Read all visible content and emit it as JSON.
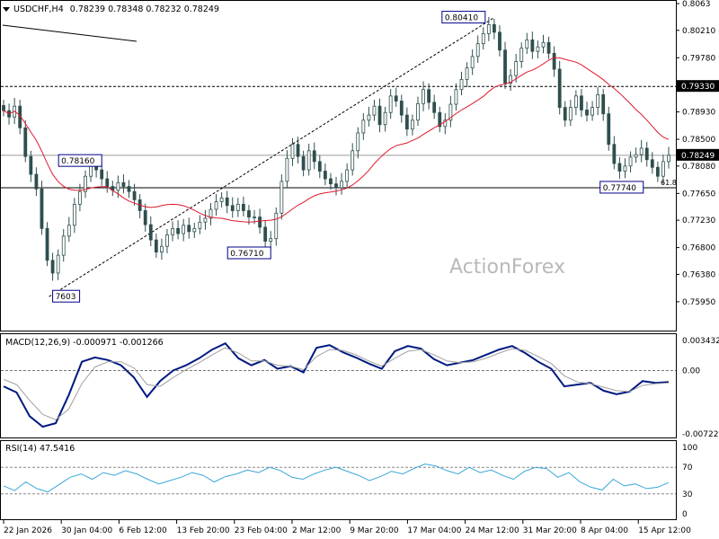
{
  "colors": {
    "background": "#ffffff",
    "candles": "#2f4f4f",
    "ma_line": "#e0182c",
    "macd_line": "#001a80",
    "signal_line": "#a0a0a0",
    "rsi_line": "#39a7d8",
    "label_border": "#00008b",
    "price_tag_bg": "#000000",
    "price_tag_fg": "#ffffff",
    "grid_frame": "#000000",
    "watermark": "#b9b9b9"
  },
  "header": {
    "symbol": "USDCHF,H4",
    "ohlc": "0.78239 0.78348 0.78232 0.78249",
    "dropdown_icon": "triangle-down-icon"
  },
  "watermark": "ActionForex",
  "chart_data": [
    {
      "type": "candlestick",
      "title": "USDCHF,H4",
      "ylim": [
        0.7561,
        0.8063
      ],
      "y_ticks": [
        0.8063,
        0.8021,
        0.7978,
        0.7935,
        0.7893,
        0.785,
        0.7808,
        0.7765,
        0.7723,
        0.768,
        0.7638,
        0.7595
      ],
      "y_tick_labels": [
        "0.8063",
        "0.80210",
        "0.79780",
        "0.79350",
        "0.78930",
        "0.78500",
        "0.78080",
        "0.77650",
        "0.77230",
        "0.76800",
        "0.76380",
        "0.75950"
      ],
      "x_tick_labels": [
        "22 Jan 2026",
        "30 Jan 04:00",
        "6 Feb 12:00",
        "13 Feb 20:00",
        "23 Feb 04:00",
        "2 Mar 12:00",
        "9 Mar 20:00",
        "17 Mar 04:00",
        "24 Mar 12:00",
        "31 Mar 20:00",
        "8 Apr 04:00",
        "15 Apr 12:00"
      ],
      "closes": [
        0.7895,
        0.7885,
        0.7902,
        0.7868,
        0.7823,
        0.7795,
        0.7772,
        0.771,
        0.766,
        0.764,
        0.7668,
        0.7698,
        0.7715,
        0.7748,
        0.7768,
        0.7792,
        0.781,
        0.7802,
        0.7788,
        0.7776,
        0.777,
        0.7782,
        0.7776,
        0.7768,
        0.7755,
        0.7738,
        0.7716,
        0.7692,
        0.7673,
        0.7682,
        0.77,
        0.771,
        0.7702,
        0.7715,
        0.7705,
        0.771,
        0.772,
        0.7726,
        0.774,
        0.7752,
        0.7758,
        0.7746,
        0.7738,
        0.7748,
        0.7738,
        0.7728,
        0.7728,
        0.7712,
        0.769,
        0.7694,
        0.7734,
        0.7784,
        0.782,
        0.7842,
        0.7823,
        0.7802,
        0.7832,
        0.7815,
        0.78,
        0.7788,
        0.778,
        0.7774,
        0.7784,
        0.7802,
        0.7832,
        0.786,
        0.788,
        0.7888,
        0.7902,
        0.7873,
        0.7892,
        0.7918,
        0.791,
        0.7888,
        0.7866,
        0.788,
        0.7906,
        0.7928,
        0.7908,
        0.7892,
        0.787,
        0.788,
        0.7905,
        0.7928,
        0.7944,
        0.7962,
        0.798,
        0.8,
        0.8016,
        0.803,
        0.8018,
        0.799,
        0.7938,
        0.795,
        0.7972,
        0.7993,
        0.8006,
        0.7988,
        0.7995,
        0.8002,
        0.7985,
        0.796,
        0.79,
        0.788,
        0.79,
        0.7918,
        0.7896,
        0.7888,
        0.79,
        0.792,
        0.789,
        0.7842,
        0.7812,
        0.78,
        0.7808,
        0.7822,
        0.7826,
        0.7836,
        0.7818,
        0.7806,
        0.7792,
        0.7815,
        0.7825
      ],
      "moving_average": {
        "period": 20
      },
      "price_tags": [
        {
          "label": "0.79330",
          "value": 0.7933
        },
        {
          "label": "0.78249",
          "value": 0.78249
        }
      ],
      "horizontal_lines": [
        {
          "value": 0.7933,
          "style": "dashed"
        },
        {
          "value": 0.78249,
          "style": "solid-gray"
        },
        {
          "value": 0.7774,
          "style": "solid"
        }
      ],
      "annotations": [
        {
          "label": "0.80410",
          "value": 0.8041
        },
        {
          "label": "0.78160",
          "value": 0.7816
        },
        {
          "label": "0.76710",
          "value": 0.7671
        },
        {
          "label": "0.77740",
          "value": 0.7774
        },
        {
          "label": "7603",
          "value": 0.7603
        },
        {
          "label": "61.8",
          "value": 0.7774
        }
      ],
      "trend_channel": [
        {
          "from": 0.7603,
          "to": 0.8041,
          "style": "dashed"
        }
      ]
    },
    {
      "type": "line",
      "title": "MACD(12,26,9) -0.000971 -0.001266",
      "ylim": [
        -0.007223,
        0.003432
      ],
      "y_tick_labels": [
        "0.003432",
        "0.00",
        "-0.007223"
      ],
      "series": [
        {
          "values": [
            -0.0018,
            -0.0025,
            -0.0052,
            -0.0064,
            -0.006,
            -0.0028,
            0.001,
            0.0015,
            0.0012,
            0.0006,
            -0.0008,
            -0.003,
            -0.0012,
            0.0,
            0.0006,
            0.0014,
            0.0024,
            0.0031,
            0.0014,
            0.0006,
            0.0012,
            0.0002,
            0.0005,
            -0.0002,
            0.0026,
            0.0029,
            0.0021,
            0.0015,
            0.0008,
            0.0002,
            0.0022,
            0.0028,
            0.0025,
            0.0013,
            0.0006,
            0.0009,
            0.0012,
            0.0018,
            0.0024,
            0.0028,
            0.002,
            0.001,
            0.0002,
            -0.0018,
            -0.0016,
            -0.0014,
            -0.0023,
            -0.0027,
            -0.0024,
            -0.0012,
            -0.0014,
            -0.0013
          ]
        },
        {
          "values": [
            -0.001,
            -0.0016,
            -0.0034,
            -0.005,
            -0.0056,
            -0.0044,
            -0.0015,
            0.0004,
            0.001,
            0.001,
            0.0003,
            -0.0016,
            -0.0018,
            -0.0008,
            0.0001,
            0.0009,
            0.0018,
            0.0026,
            0.002,
            0.0011,
            0.0011,
            0.0006,
            0.0005,
            0.0001,
            0.0016,
            0.0024,
            0.0023,
            0.0018,
            0.0011,
            0.0005,
            0.0014,
            0.0022,
            0.0024,
            0.0018,
            0.0011,
            0.0009,
            0.001,
            0.0014,
            0.002,
            0.0025,
            0.0023,
            0.0016,
            0.0008,
            -0.0006,
            -0.0013,
            -0.0015,
            -0.0019,
            -0.0023,
            -0.0024,
            -0.0017,
            -0.0015,
            -0.0014
          ]
        }
      ]
    },
    {
      "type": "line",
      "title": "RSI(14) 47.5416",
      "ylim": [
        0,
        100
      ],
      "y_tick_labels": [
        "100",
        "70",
        "30",
        "0"
      ],
      "levels": [
        70,
        30
      ],
      "series": [
        {
          "values": [
            42,
            35,
            48,
            38,
            33,
            44,
            55,
            60,
            52,
            62,
            58,
            65,
            60,
            52,
            45,
            50,
            55,
            62,
            58,
            48,
            56,
            60,
            66,
            62,
            70,
            65,
            55,
            52,
            60,
            66,
            70,
            64,
            58,
            50,
            56,
            64,
            60,
            68,
            75,
            72,
            65,
            60,
            70,
            62,
            66,
            58,
            52,
            64,
            70,
            68,
            55,
            62,
            48,
            40,
            36,
            52,
            42,
            45,
            38,
            40,
            47
          ]
        }
      ]
    }
  ]
}
